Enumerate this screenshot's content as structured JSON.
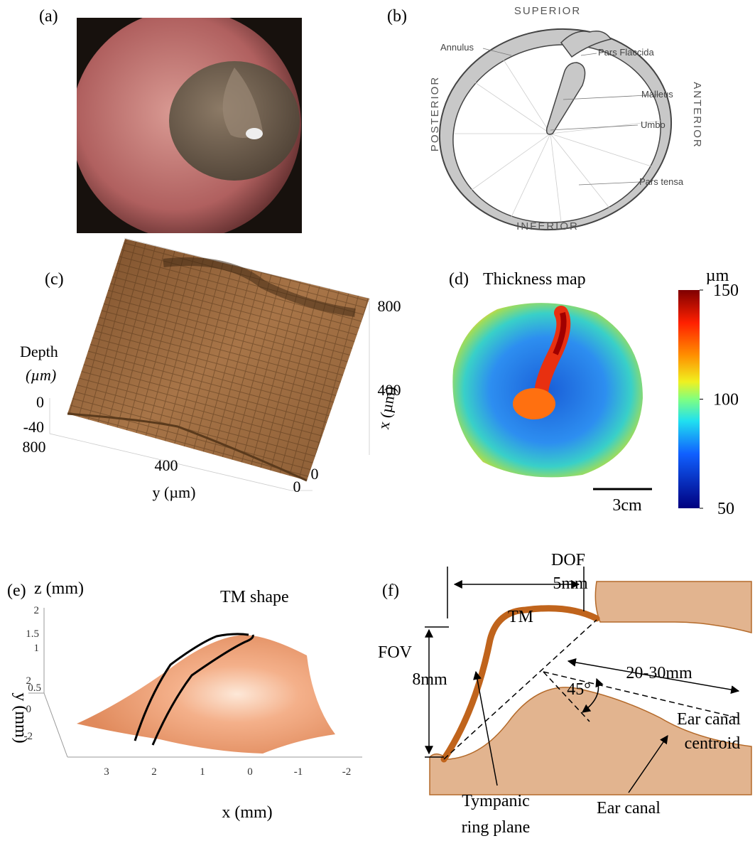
{
  "panel_a": {
    "label": "(a)"
  },
  "panel_b": {
    "label": "(b)",
    "superior": "SUPERIOR",
    "inferior": "INFERIOR",
    "posterior": "POSTERIOR",
    "anterior": "ANTERIOR",
    "annulus": "Annulus",
    "pars_flaccida": "Pars Flaccida",
    "malleus": "Malleus",
    "umbo": "Umbo",
    "pars_tensa": "Pars tensa"
  },
  "panel_c": {
    "label": "(c)",
    "z_label_1": "Depth",
    "z_label_2": "(µm)",
    "z_ticks": [
      0,
      -40
    ],
    "y_label": "y (µm)",
    "y_ticks": [
      800,
      400,
      0
    ],
    "x_label": "x (µm)",
    "x_ticks": [
      800,
      400,
      0
    ]
  },
  "panel_d": {
    "label": "(d)",
    "title": "Thickness map",
    "colorbar": {
      "unit": "µm",
      "lim": [
        50,
        150
      ],
      "ticks": [
        150,
        100,
        50
      ]
    },
    "scale_bar": "3cm"
  },
  "panel_e": {
    "label": "(e)",
    "title": "TM shape",
    "z_label": "z (mm)",
    "z_ticks": [
      2,
      1.5,
      1,
      0.5
    ],
    "y_label": "y (mm)",
    "y_ticks": [
      2,
      0,
      -2
    ],
    "x_label": "x (mm)",
    "x_ticks": [
      3,
      2,
      1,
      0,
      -1,
      -2
    ]
  },
  "panel_f": {
    "label": "(f)",
    "dof": "DOF",
    "dof_value": "5mm",
    "fov": "FOV",
    "fov_value": "8mm",
    "tm": "TM",
    "distance": "20-30mm",
    "angle": "45°",
    "centroid_1": "Ear canal",
    "centroid_2": "centroid",
    "ring_1": "Tympanic",
    "ring_2": "ring plane",
    "ear_canal": "Ear canal"
  }
}
